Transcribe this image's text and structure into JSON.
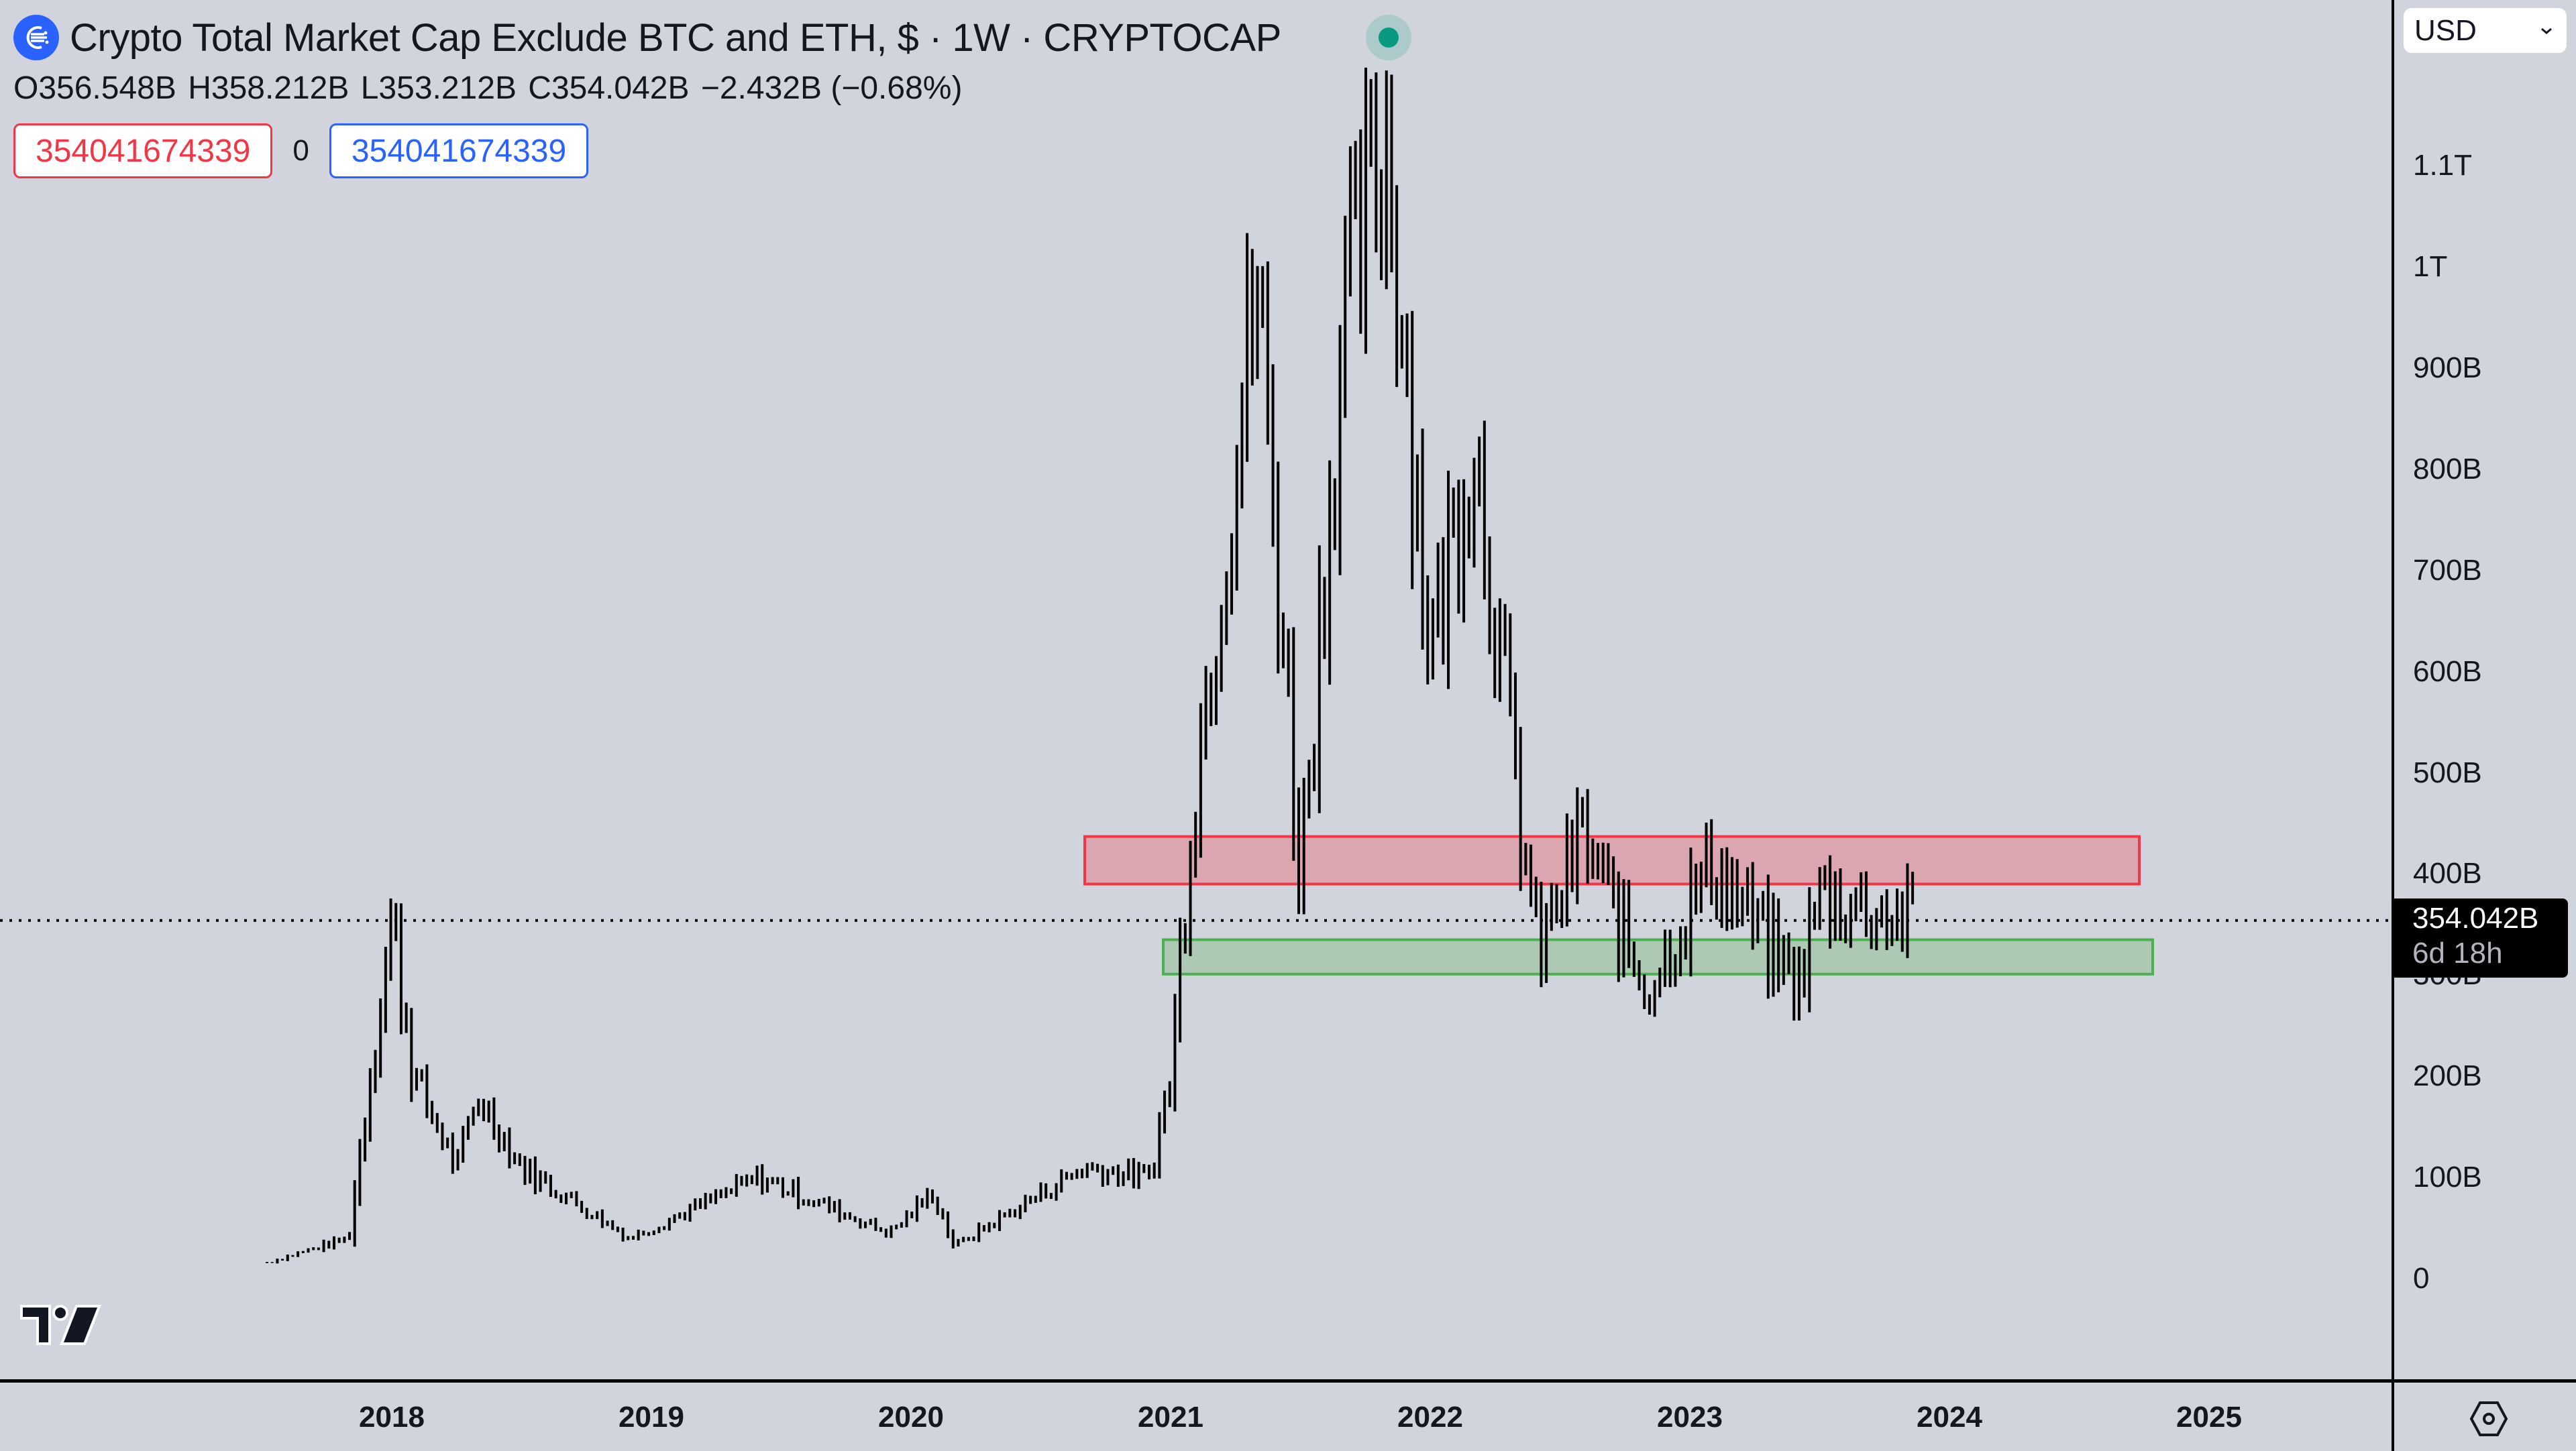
{
  "header": {
    "title": "Crypto Total Market Cap Exclude BTC and ETH, $ · 1W · CRYPTOCAP",
    "symbol_icon": "crypto-total-market-icon",
    "status": "market-open-dot",
    "ohlc": {
      "open": "O356.548B",
      "high": "H358.212B",
      "low": "L353.212B",
      "close": "C354.042B",
      "change": "−2.432B (−0.68%)"
    },
    "inputs": {
      "left_value": "354041674339",
      "middle_value": "0",
      "right_value": "354041674339"
    }
  },
  "currency_select": {
    "value": "USD"
  },
  "price_axis": {
    "ticks": [
      "1.1T",
      "1T",
      "900B",
      "800B",
      "700B",
      "600B",
      "500B",
      "400B",
      "300B",
      "200B",
      "100B",
      "0"
    ],
    "current_price": "354.042B",
    "countdown": "6d 18h"
  },
  "time_axis": {
    "ticks": [
      "2018",
      "2019",
      "2020",
      "2021",
      "2022",
      "2023",
      "2024",
      "2025"
    ]
  },
  "colors": {
    "background": "#d1d4dc",
    "bars": "#000000",
    "resistance_zone_fill": "#dca6b0",
    "resistance_zone_border": "#f23645",
    "support_zone_fill": "#adc9b3",
    "support_zone_border": "#4caf50",
    "status_green": "#089981",
    "accent_blue": "#2962ff"
  },
  "chart_data": {
    "type": "bar",
    "title": "Crypto Total Market Cap Exclude BTC and ETH, $ · 1W · CRYPTOCAP",
    "xlabel": "",
    "ylabel": "USD",
    "ylim": [
      0,
      1150
    ],
    "y_unit": "B",
    "x_start": "2017-07",
    "x_end": "2023-11",
    "timeframe": "1W",
    "grid": false,
    "last": {
      "open": 356.548,
      "high": 358.212,
      "low": 353.212,
      "close": 354.042,
      "change": -2.432,
      "change_pct": -0.68
    },
    "zones": [
      {
        "name": "resistance",
        "low": 390,
        "high": 437,
        "x_from": "2020-09",
        "x_to": "2024-10"
      },
      {
        "name": "support",
        "low": 301,
        "high": 335,
        "x_from": "2020-12",
        "x_to": "2024-10"
      }
    ],
    "anchors": [
      {
        "x": "2017-07",
        "v": 16
      },
      {
        "x": "2017-11",
        "v": 40
      },
      {
        "x": "2017-12",
        "v": 200
      },
      {
        "x": "2018-01",
        "v": 358
      },
      {
        "x": "2018-02",
        "v": 200
      },
      {
        "x": "2018-04",
        "v": 110
      },
      {
        "x": "2018-05",
        "v": 180
      },
      {
        "x": "2018-07",
        "v": 110
      },
      {
        "x": "2018-12",
        "v": 40
      },
      {
        "x": "2019-06",
        "v": 100
      },
      {
        "x": "2019-12",
        "v": 45
      },
      {
        "x": "2020-02",
        "v": 85
      },
      {
        "x": "2020-03",
        "v": 32
      },
      {
        "x": "2020-09",
        "v": 110
      },
      {
        "x": "2020-12",
        "v": 100
      },
      {
        "x": "2021-01",
        "v": 200
      },
      {
        "x": "2021-02",
        "v": 470
      },
      {
        "x": "2021-05",
        "v": 985
      },
      {
        "x": "2021-07",
        "v": 400
      },
      {
        "x": "2021-09",
        "v": 950
      },
      {
        "x": "2021-11",
        "v": 1130
      },
      {
        "x": "2022-01",
        "v": 620
      },
      {
        "x": "2022-03",
        "v": 840
      },
      {
        "x": "2022-05",
        "v": 480
      },
      {
        "x": "2022-06",
        "v": 320
      },
      {
        "x": "2022-08",
        "v": 440
      },
      {
        "x": "2022-11",
        "v": 285
      },
      {
        "x": "2023-02",
        "v": 410
      },
      {
        "x": "2023-06",
        "v": 290
      },
      {
        "x": "2023-07",
        "v": 380
      },
      {
        "x": "2023-11",
        "v": 354
      }
    ]
  }
}
